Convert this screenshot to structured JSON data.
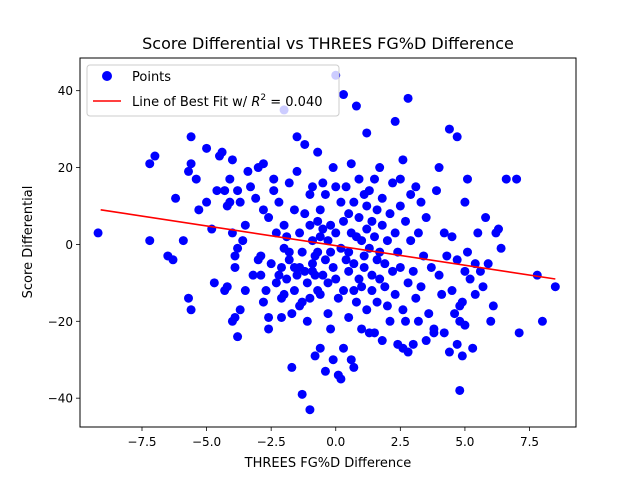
{
  "chart_data": {
    "type": "scatter",
    "title": "Score Differential vs THREES FG%D Difference",
    "xlabel": "THREES FG%D Difference",
    "ylabel": "Score Differential",
    "xlim": [
      -9.9,
      9.3
    ],
    "ylim": [
      -47.5,
      48.5
    ],
    "xticks": [
      -7.5,
      -5.0,
      -2.5,
      0.0,
      2.5,
      5.0,
      7.5
    ],
    "xtick_labels": [
      "−7.5",
      "−5.0",
      "−2.5",
      "0.0",
      "2.5",
      "5.0",
      "7.5"
    ],
    "yticks": [
      -40,
      -20,
      0,
      20,
      40
    ],
    "ytick_labels": [
      "−40",
      "−20",
      "0",
      "20",
      "40"
    ],
    "grid": false,
    "legend_placement": "top-left",
    "legend": {
      "points_label": "Points",
      "line_label_prefix": "Line of Best Fit w/ ",
      "line_label_r2": "R",
      "line_label_sup": "2",
      "line_label_suffix": " = 0.040"
    },
    "colors": {
      "points": "#0000ff",
      "line": "#ff0000"
    },
    "series": [
      {
        "name": "Points",
        "kind": "scatter",
        "points": [
          [
            -9.2,
            3
          ],
          [
            -7.2,
            21
          ],
          [
            -7.0,
            23
          ],
          [
            -7.2,
            1
          ],
          [
            -6.5,
            -3
          ],
          [
            -6.3,
            -4
          ],
          [
            -6.2,
            12
          ],
          [
            -5.9,
            1
          ],
          [
            -5.7,
            -14
          ],
          [
            -5.6,
            -17
          ],
          [
            -5.7,
            19
          ],
          [
            -5.6,
            21
          ],
          [
            -5.6,
            28
          ],
          [
            -5.4,
            17
          ],
          [
            -5.3,
            9
          ],
          [
            -5.0,
            11
          ],
          [
            -5.0,
            25
          ],
          [
            -4.8,
            4
          ],
          [
            -4.7,
            -10
          ],
          [
            -4.6,
            14
          ],
          [
            -4.5,
            23
          ],
          [
            -4.4,
            24
          ],
          [
            -4.3,
            -12
          ],
          [
            -4.3,
            14
          ],
          [
            -4.2,
            -11
          ],
          [
            -4.2,
            10
          ],
          [
            -4.1,
            11
          ],
          [
            -4.1,
            17
          ],
          [
            -4.0,
            -20
          ],
          [
            -4.0,
            3
          ],
          [
            -4.0,
            22
          ],
          [
            -3.9,
            -3
          ],
          [
            -3.9,
            -6
          ],
          [
            -3.9,
            -19
          ],
          [
            -3.8,
            -24
          ],
          [
            -3.8,
            14
          ],
          [
            -3.8,
            -1
          ],
          [
            -3.7,
            11
          ],
          [
            -3.7,
            -17
          ],
          [
            -3.6,
            1
          ],
          [
            -3.5,
            5
          ],
          [
            -3.5,
            -12
          ],
          [
            -3.4,
            19
          ],
          [
            -3.3,
            15
          ],
          [
            -3.2,
            -8
          ],
          [
            -3.1,
            12
          ],
          [
            -3.0,
            -4
          ],
          [
            -3.0,
            20
          ],
          [
            -2.9,
            -3
          ],
          [
            -2.9,
            -8
          ],
          [
            -2.8,
            -15
          ],
          [
            -2.8,
            9
          ],
          [
            -2.8,
            21
          ],
          [
            -2.7,
            -12
          ],
          [
            -2.6,
            -19
          ],
          [
            -2.6,
            7
          ],
          [
            -2.6,
            -22
          ],
          [
            -2.5,
            -5
          ],
          [
            -2.4,
            17
          ],
          [
            -2.4,
            14
          ],
          [
            -2.3,
            3
          ],
          [
            -2.3,
            -10
          ],
          [
            -2.2,
            -8
          ],
          [
            -2.2,
            11
          ],
          [
            -2.1,
            -19
          ],
          [
            -2.1,
            -14
          ],
          [
            -2.1,
            -6
          ],
          [
            -2.0,
            35
          ],
          [
            -2.0,
            -1
          ],
          [
            -2.0,
            -13
          ],
          [
            -2.0,
            5
          ],
          [
            -1.9,
            2
          ],
          [
            -1.9,
            -9
          ],
          [
            -1.8,
            -2
          ],
          [
            -1.8,
            16
          ],
          [
            -1.8,
            -4
          ],
          [
            -1.7,
            -18
          ],
          [
            -1.7,
            -32
          ],
          [
            -1.6,
            -12
          ],
          [
            -1.6,
            9
          ],
          [
            -1.6,
            -6
          ],
          [
            -1.5,
            -8
          ],
          [
            -1.5,
            28
          ],
          [
            -1.5,
            19
          ],
          [
            -1.4,
            -6
          ],
          [
            -1.4,
            -16
          ],
          [
            -1.4,
            3
          ],
          [
            -1.3,
            -2
          ],
          [
            -1.3,
            -39
          ],
          [
            -1.3,
            -15
          ],
          [
            -1.2,
            26
          ],
          [
            -1.2,
            8
          ],
          [
            -1.2,
            -7
          ],
          [
            -1.1,
            -10
          ],
          [
            -1.1,
            -20
          ],
          [
            -1.0,
            -14
          ],
          [
            -1.0,
            5
          ],
          [
            -1.0,
            13
          ],
          [
            -1.0,
            -43
          ],
          [
            -0.9,
            -5
          ],
          [
            -0.9,
            1
          ],
          [
            -0.9,
            15
          ],
          [
            -0.9,
            -7
          ],
          [
            -0.8,
            -29
          ],
          [
            -0.8,
            -3
          ],
          [
            -0.8,
            -8
          ],
          [
            -0.7,
            24
          ],
          [
            -0.7,
            6
          ],
          [
            -0.7,
            -2
          ],
          [
            -0.7,
            -12
          ],
          [
            -0.6,
            -27
          ],
          [
            -0.6,
            9
          ],
          [
            -0.6,
            -13
          ],
          [
            -0.6,
            2
          ],
          [
            -0.5,
            -8
          ],
          [
            -0.5,
            16
          ],
          [
            -0.5,
            4
          ],
          [
            -0.4,
            -33
          ],
          [
            -0.4,
            -4
          ],
          [
            -0.4,
            13
          ],
          [
            -0.3,
            1
          ],
          [
            -0.3,
            -10
          ],
          [
            -0.3,
            -18
          ],
          [
            -0.2,
            -22
          ],
          [
            -0.2,
            5
          ],
          [
            -0.2,
            -2
          ],
          [
            -0.1,
            20
          ],
          [
            -0.1,
            -6
          ],
          [
            -0.1,
            -30
          ],
          [
            0.0,
            44
          ],
          [
            0.0,
            15
          ],
          [
            0.0,
            3
          ],
          [
            0.0,
            -9
          ],
          [
            0.1,
            -14
          ],
          [
            0.1,
            -34
          ],
          [
            0.2,
            -35
          ],
          [
            0.2,
            11
          ],
          [
            0.2,
            -1
          ],
          [
            0.3,
            39
          ],
          [
            0.3,
            -27
          ],
          [
            0.3,
            -12
          ],
          [
            0.3,
            6
          ],
          [
            0.4,
            -4
          ],
          [
            0.4,
            15
          ],
          [
            0.5,
            -2
          ],
          [
            0.5,
            8
          ],
          [
            0.5,
            -19
          ],
          [
            0.5,
            -7
          ],
          [
            0.6,
            21
          ],
          [
            0.6,
            -30
          ],
          [
            0.6,
            3
          ],
          [
            0.7,
            -12
          ],
          [
            0.7,
            -32
          ],
          [
            0.7,
            11
          ],
          [
            0.7,
            -5
          ],
          [
            0.8,
            36
          ],
          [
            0.8,
            -15
          ],
          [
            0.8,
            2
          ],
          [
            0.9,
            -9
          ],
          [
            0.9,
            17
          ],
          [
            0.9,
            7
          ],
          [
            1.0,
            -22
          ],
          [
            1.0,
            1
          ],
          [
            1.0,
            -11
          ],
          [
            1.1,
            -3
          ],
          [
            1.1,
            13
          ],
          [
            1.1,
            -6
          ],
          [
            1.2,
            4
          ],
          [
            1.2,
            -17
          ],
          [
            1.2,
            29
          ],
          [
            1.2,
            10
          ],
          [
            1.3,
            -1
          ],
          [
            1.3,
            -23
          ],
          [
            1.3,
            14
          ],
          [
            1.4,
            -8
          ],
          [
            1.4,
            6
          ],
          [
            1.4,
            -12
          ],
          [
            1.5,
            -23
          ],
          [
            1.5,
            17
          ],
          [
            1.5,
            2
          ],
          [
            1.6,
            -4
          ],
          [
            1.6,
            9
          ],
          [
            1.6,
            -15
          ],
          [
            1.7,
            20
          ],
          [
            1.7,
            -2
          ],
          [
            1.7,
            -9
          ],
          [
            1.8,
            -25
          ],
          [
            1.8,
            12
          ],
          [
            1.8,
            5
          ],
          [
            1.9,
            -11
          ],
          [
            1.9,
            -5
          ],
          [
            2.0,
            1
          ],
          [
            2.0,
            -16
          ],
          [
            2.1,
            8
          ],
          [
            2.1,
            -20
          ],
          [
            2.2,
            16
          ],
          [
            2.2,
            -7
          ],
          [
            2.3,
            32
          ],
          [
            2.3,
            -13
          ],
          [
            2.3,
            3
          ],
          [
            2.4,
            -26
          ],
          [
            2.4,
            -2
          ],
          [
            2.5,
            10
          ],
          [
            2.5,
            17
          ],
          [
            2.5,
            -6
          ],
          [
            2.6,
            -17
          ],
          [
            2.6,
            22
          ],
          [
            2.6,
            -27
          ],
          [
            2.7,
            -20
          ],
          [
            2.7,
            6
          ],
          [
            2.8,
            38
          ],
          [
            2.8,
            -10
          ],
          [
            2.8,
            -28
          ],
          [
            2.9,
            1
          ],
          [
            2.9,
            13
          ],
          [
            3.0,
            -7
          ],
          [
            3.0,
            -26
          ],
          [
            3.1,
            -14
          ],
          [
            3.1,
            15
          ],
          [
            3.2,
            3
          ],
          [
            3.2,
            -20
          ],
          [
            3.3,
            -11
          ],
          [
            3.3,
            11
          ],
          [
            3.4,
            -3
          ],
          [
            3.5,
            -25
          ],
          [
            3.5,
            7
          ],
          [
            3.6,
            -18
          ],
          [
            3.7,
            -6
          ],
          [
            3.8,
            -22
          ],
          [
            3.8,
            -23
          ],
          [
            3.9,
            14
          ],
          [
            4.0,
            20
          ],
          [
            4.0,
            -8
          ],
          [
            4.1,
            -13
          ],
          [
            4.2,
            3
          ],
          [
            4.2,
            -23
          ],
          [
            4.3,
            -3
          ],
          [
            4.4,
            30
          ],
          [
            4.4,
            -28
          ],
          [
            4.5,
            -12
          ],
          [
            4.5,
            2
          ],
          [
            4.6,
            -18
          ],
          [
            4.7,
            -26
          ],
          [
            4.7,
            28
          ],
          [
            4.7,
            -4
          ],
          [
            4.8,
            -16
          ],
          [
            4.8,
            -38
          ],
          [
            4.8,
            -20
          ],
          [
            4.9,
            -15
          ],
          [
            4.9,
            -29
          ],
          [
            5.0,
            11
          ],
          [
            5.0,
            -7
          ],
          [
            5.0,
            -21
          ],
          [
            5.1,
            17
          ],
          [
            5.1,
            -2
          ],
          [
            5.2,
            -9
          ],
          [
            5.3,
            -27
          ],
          [
            5.4,
            -5
          ],
          [
            5.4,
            -13
          ],
          [
            5.5,
            3
          ],
          [
            5.6,
            -7
          ],
          [
            5.7,
            -11
          ],
          [
            5.8,
            7
          ],
          [
            5.9,
            -5
          ],
          [
            6.0,
            -20
          ],
          [
            6.1,
            -16
          ],
          [
            6.2,
            3
          ],
          [
            6.3,
            4
          ],
          [
            6.4,
            -1
          ],
          [
            6.6,
            17
          ],
          [
            7.0,
            17
          ],
          [
            7.1,
            -23
          ],
          [
            7.8,
            -8
          ],
          [
            8.0,
            -20
          ],
          [
            8.5,
            -11
          ]
        ]
      },
      {
        "name": "Line of Best Fit",
        "kind": "line",
        "points": [
          [
            -9.1,
            9.0
          ],
          [
            8.5,
            -9.0
          ]
        ]
      }
    ]
  }
}
